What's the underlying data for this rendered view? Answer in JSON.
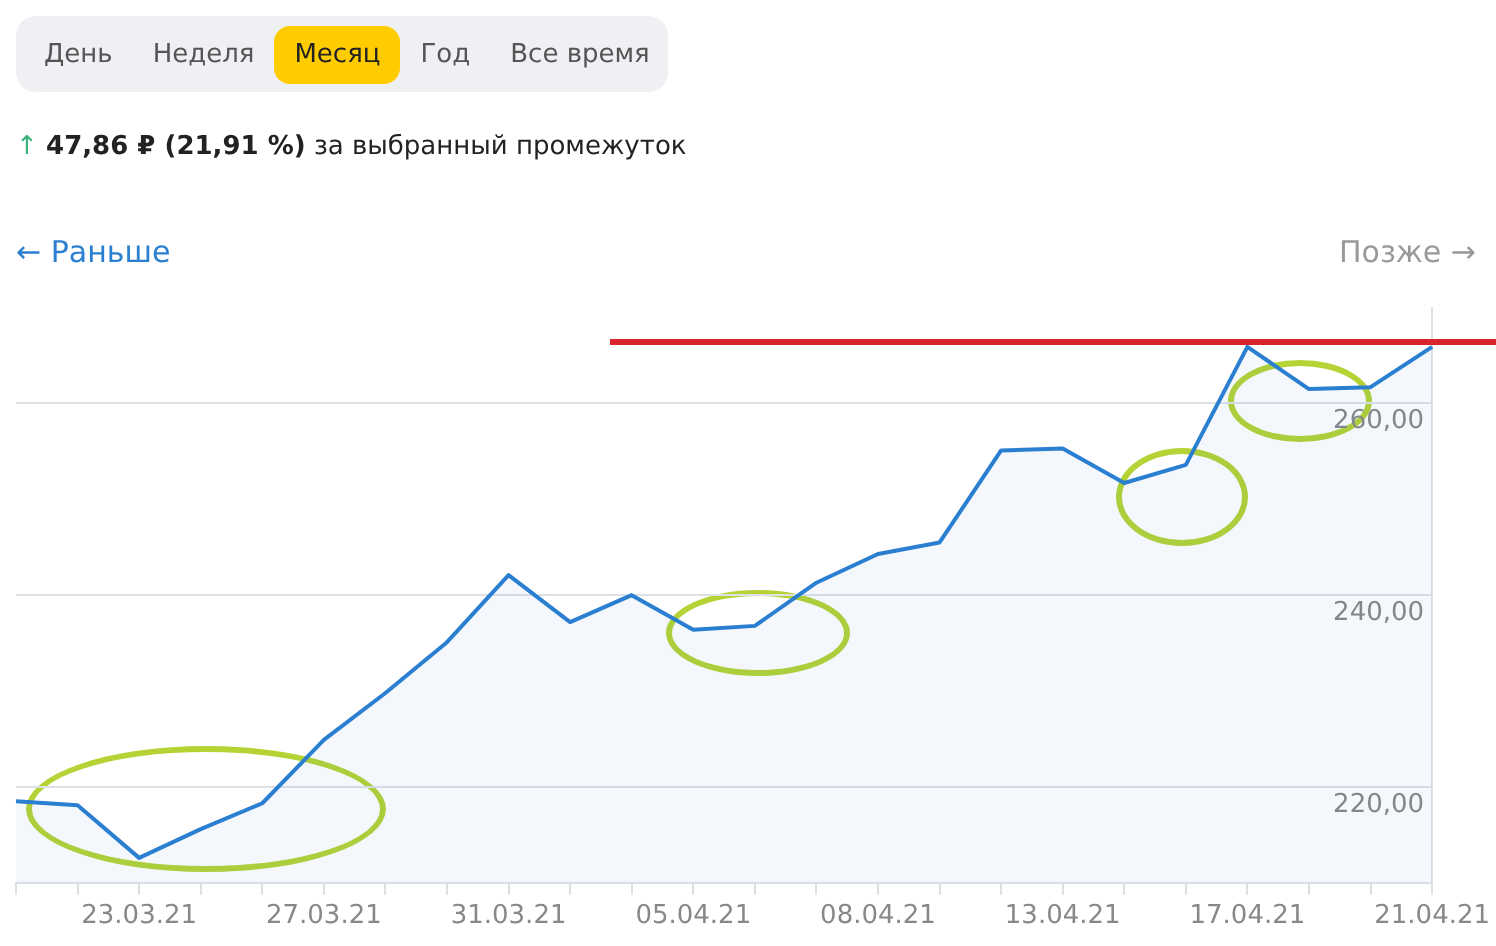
{
  "chart_data": {
    "type": "area",
    "categories": [
      null,
      null,
      "23.03.21",
      null,
      null,
      "27.03.21",
      null,
      null,
      "31.03.21",
      null,
      null,
      "05.04.21",
      null,
      null,
      "08.04.21",
      null,
      null,
      "13.04.21",
      null,
      null,
      "17.04.21",
      null,
      null,
      "21.04.21"
    ],
    "series": [
      {
        "color": "#2b7fd0",
        "values": [
          218.5,
          218.1,
          212.6,
          215.6,
          218.3,
          224.9,
          229.8,
          235.1,
          242.1,
          237.2,
          240.0,
          236.4,
          236.8,
          241.3,
          244.3,
          245.5,
          255.1,
          255.3,
          251.7,
          253.6,
          265.9,
          261.5,
          261.7,
          265.9
        ]
      }
    ],
    "ylim": [
      210,
      270
    ],
    "yticks": [
      {
        "value": 220,
        "label": "220,00"
      },
      {
        "value": 240,
        "label": "240,00"
      },
      {
        "value": 260,
        "label": "260,00"
      }
    ],
    "grid": "y",
    "legend": false,
    "ref_lines": [
      {
        "axis": "y",
        "value": 266.4,
        "color": "#d9232d"
      }
    ],
    "annotations": [
      "День",
      "Неделя",
      "Месяц",
      "Год",
      "Все время",
      "↑ 47,86 ₽ (21,91 %) за выбранный промежуток",
      "← Раньше",
      "Позже →"
    ]
  }
}
